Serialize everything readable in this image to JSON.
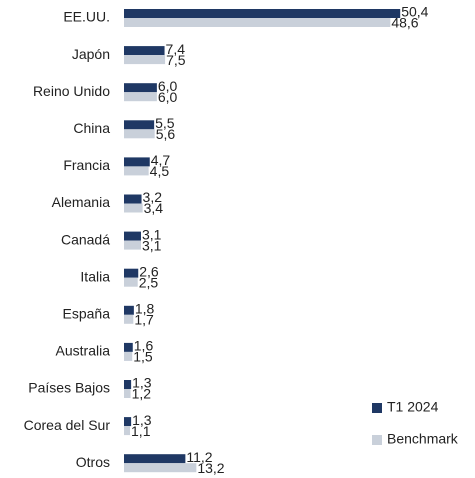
{
  "chart_data": {
    "type": "bar",
    "orientation": "horizontal",
    "categories": [
      "EE.UU.",
      "Japón",
      "Reino Unido",
      "China",
      "Francia",
      "Alemania",
      "Canadá",
      "Italia",
      "España",
      "Australia",
      "Países Bajos",
      "Corea del Sur",
      "Otros"
    ],
    "series": [
      {
        "name": "T1 2024",
        "color": "#1f3864",
        "values": [
          50.4,
          7.4,
          6.0,
          5.5,
          4.7,
          3.2,
          3.1,
          2.6,
          1.8,
          1.6,
          1.3,
          1.3,
          11.2
        ],
        "value_labels": [
          "50,4",
          "7,4",
          "6,0",
          "5,5",
          "4,7",
          "3,2",
          "3,1",
          "2,6",
          "1,8",
          "1,6",
          "1,3",
          "1,3",
          "11,2"
        ]
      },
      {
        "name": "Benchmark",
        "color": "#c9d0da",
        "values": [
          48.6,
          7.5,
          6.0,
          5.6,
          4.5,
          3.4,
          3.1,
          2.5,
          1.7,
          1.5,
          1.2,
          1.1,
          13.2
        ],
        "value_labels": [
          "48,6",
          "7,5",
          "6,0",
          "5,6",
          "4,5",
          "3,4",
          "3,1",
          "2,5",
          "1,7",
          "1,5",
          "1,2",
          "1,1",
          "13,2"
        ]
      }
    ],
    "legend": "bottom-right"
  }
}
